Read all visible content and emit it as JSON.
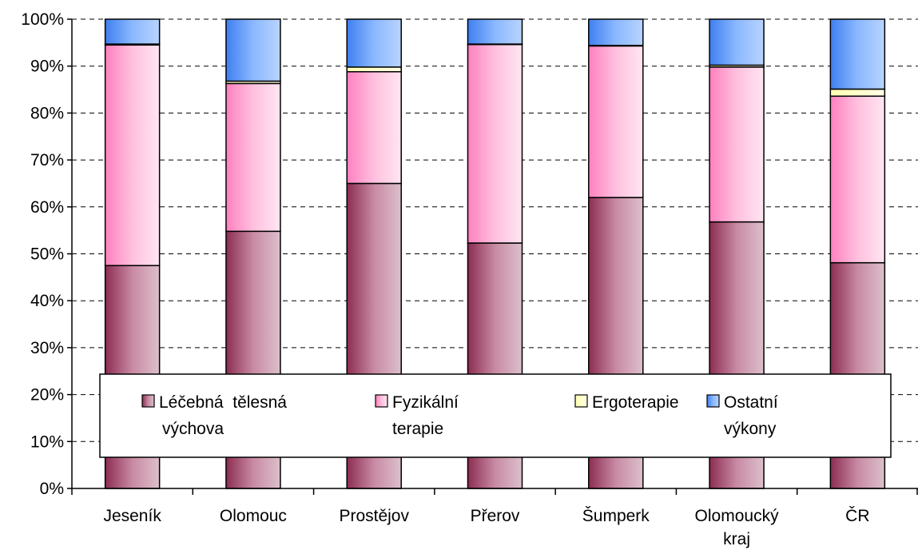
{
  "chart_data": {
    "type": "bar",
    "stacked": true,
    "percent": true,
    "categories": [
      "Jeseník",
      "Olomouc",
      "Prostějov",
      "Přerov",
      "Šumperk",
      "Olomoucký kraj",
      "ČR"
    ],
    "series": [
      {
        "name": "Léčebná tělesná výchova",
        "values": [
          47.5,
          54.8,
          65.0,
          52.3,
          62.0,
          56.8,
          48.1
        ]
      },
      {
        "name": "Fyzikální terapie",
        "values": [
          47.0,
          31.5,
          23.8,
          42.3,
          32.3,
          33.0,
          35.5
        ]
      },
      {
        "name": "Ergoterapie",
        "values": [
          0.2,
          0.5,
          1.0,
          0.1,
          0.1,
          0.4,
          1.5
        ]
      },
      {
        "name": "Ostatní výkony",
        "values": [
          5.3,
          13.2,
          10.2,
          5.3,
          5.6,
          9.8,
          14.9
        ]
      }
    ],
    "ylim": [
      0,
      100
    ],
    "yticks": [
      "0%",
      "10%",
      "20%",
      "30%",
      "40%",
      "50%",
      "60%",
      "70%",
      "80%",
      "90%",
      "100%"
    ],
    "grid": true,
    "legend_position": "bottom-inside",
    "legend": [
      {
        "line1": "Léčebná  tělesná",
        "line2": "výchova",
        "color": "#b34d6f"
      },
      {
        "line1": "Fyzikální",
        "line2": "terapie",
        "color": "#ffb3d6"
      },
      {
        "line1": "Ergoterapie",
        "line2": "",
        "color": "#ffffcc"
      },
      {
        "line1": "Ostatní",
        "line2": "výkony",
        "color": "#6fa6f5"
      }
    ],
    "category_lines": [
      [
        "Jeseník"
      ],
      [
        "Olomouc"
      ],
      [
        "Prostějov"
      ],
      [
        "Přerov"
      ],
      [
        "Šumperk"
      ],
      [
        "Olomoucký",
        "kraj"
      ],
      [
        "ČR"
      ]
    ],
    "colors": [
      "#a84866",
      "#ff9ccb",
      "#ffffcc",
      "#66a3ff"
    ]
  }
}
